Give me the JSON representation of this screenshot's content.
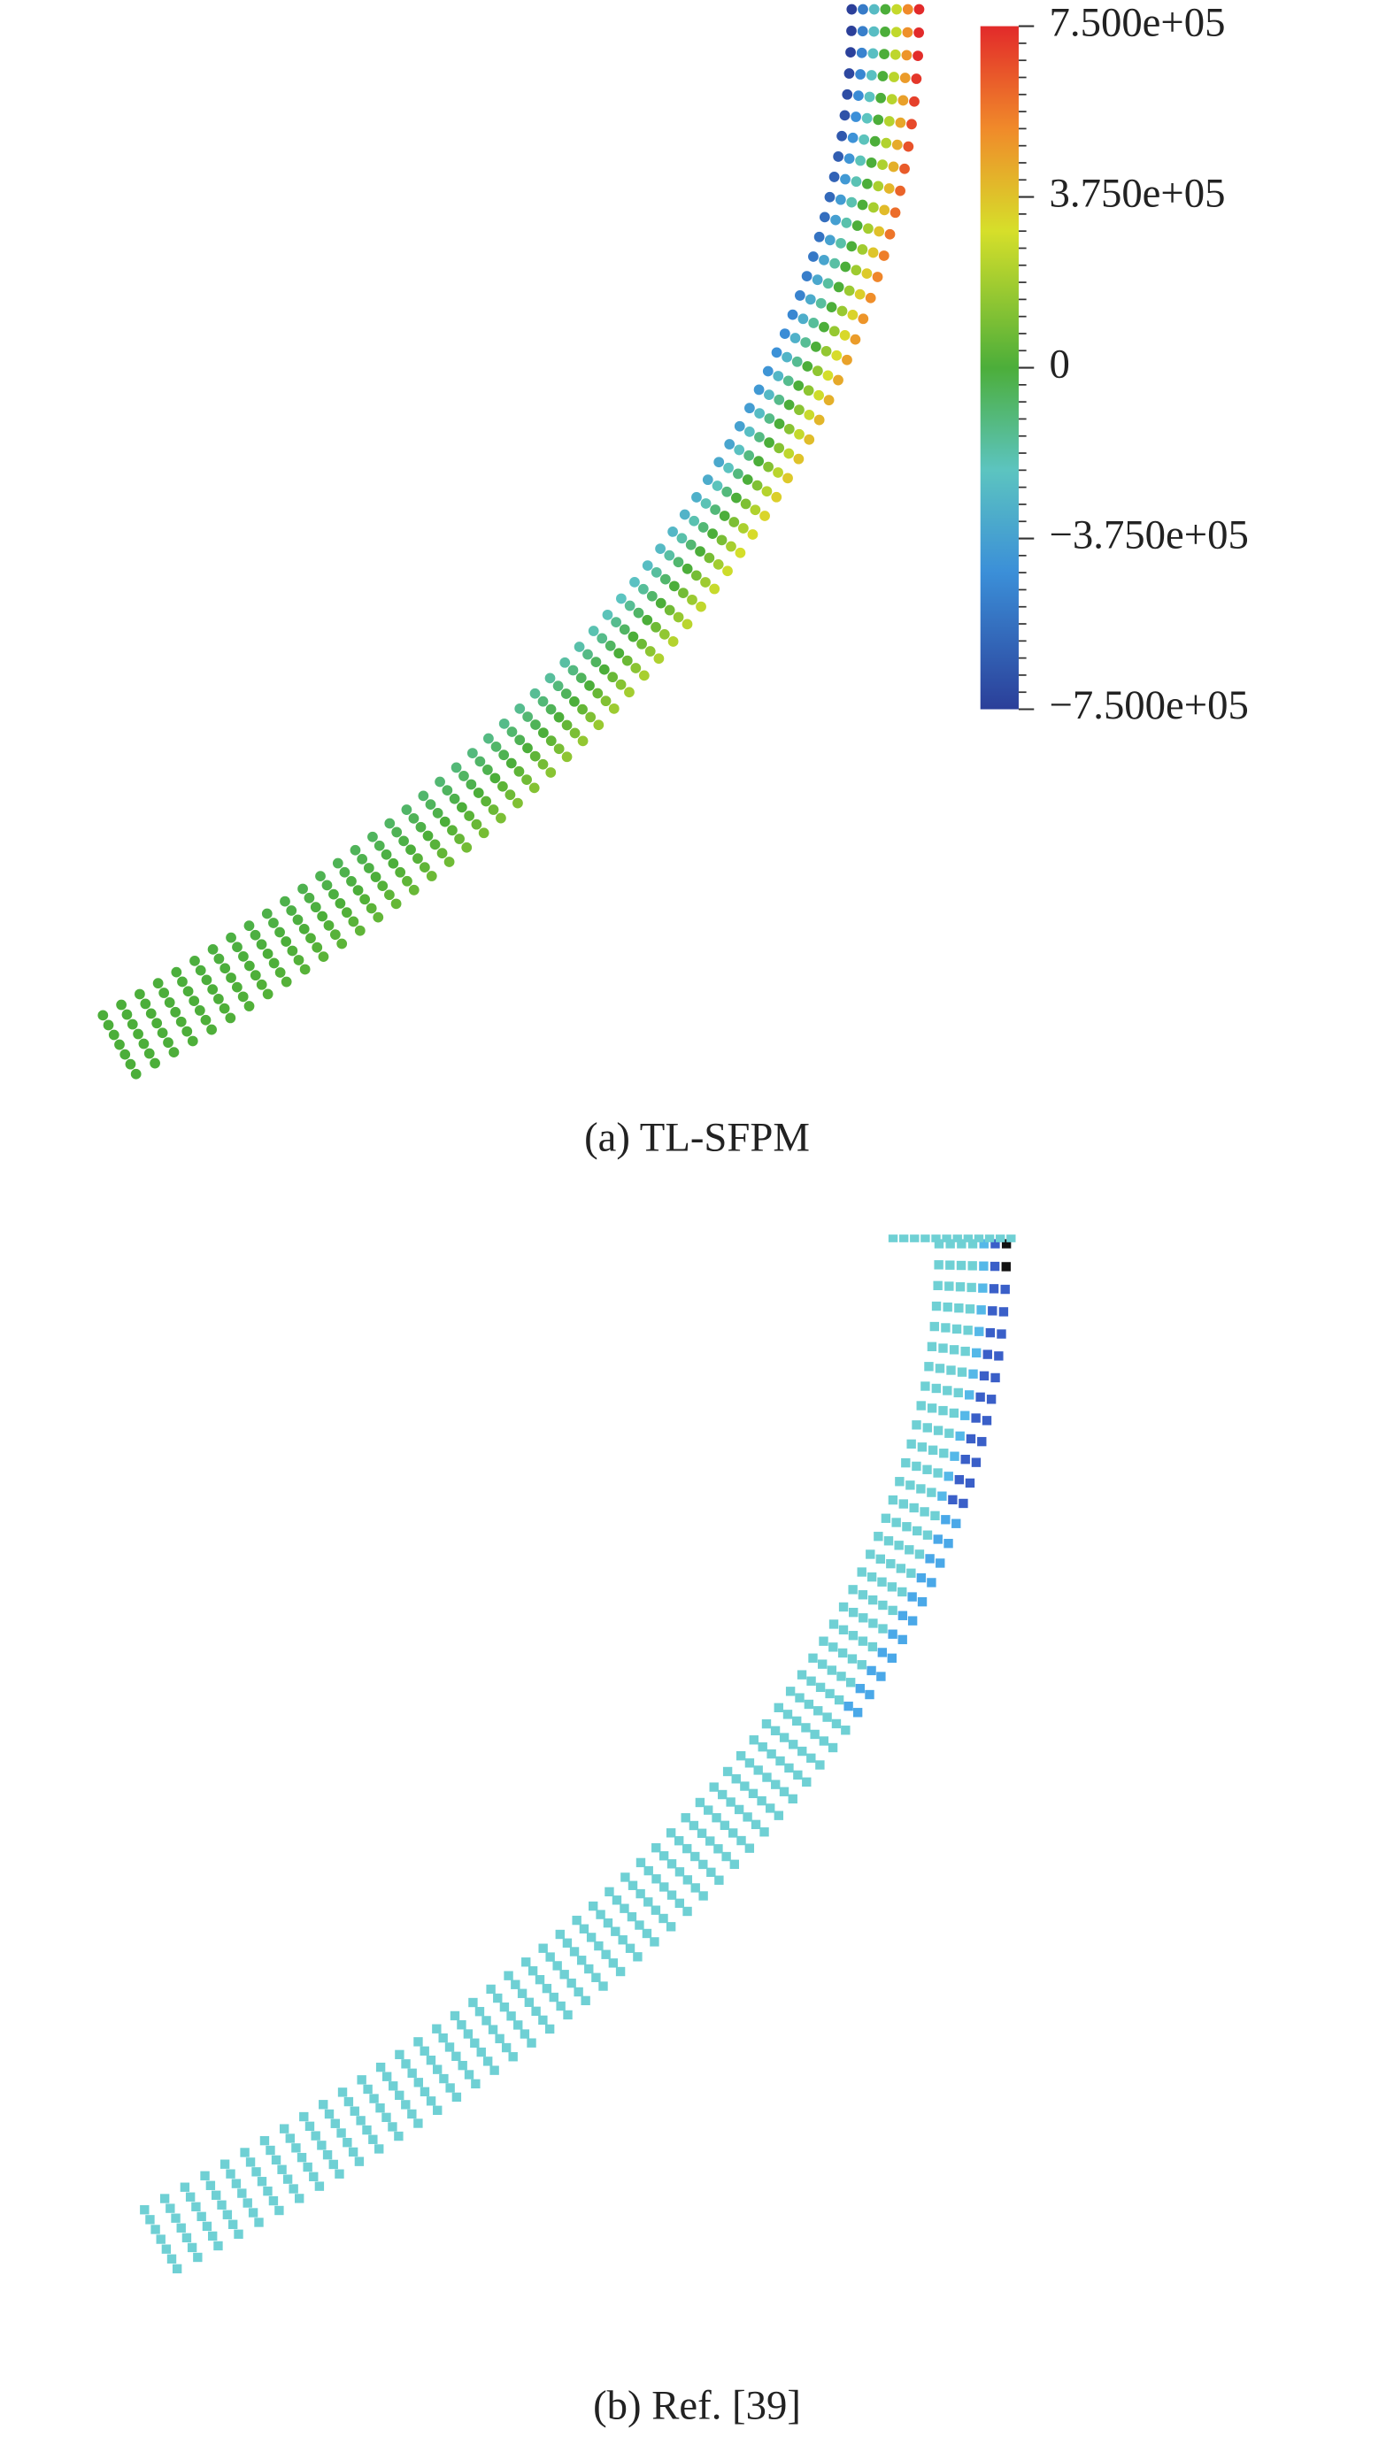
{
  "colorbar": {
    "ticks": [
      {
        "value": 750000,
        "label": "7.500e+05"
      },
      {
        "value": 375000,
        "label": "3.750e+05"
      },
      0,
      {
        "value": -375000,
        "label": "−3.750e+05"
      },
      {
        "value": -750000,
        "label": "−7.500e+05"
      }
    ],
    "range": [
      -750000,
      750000
    ]
  },
  "captions": {
    "a": "(a) TL-SFPM",
    "b": "(b) Ref. [39]"
  }
}
